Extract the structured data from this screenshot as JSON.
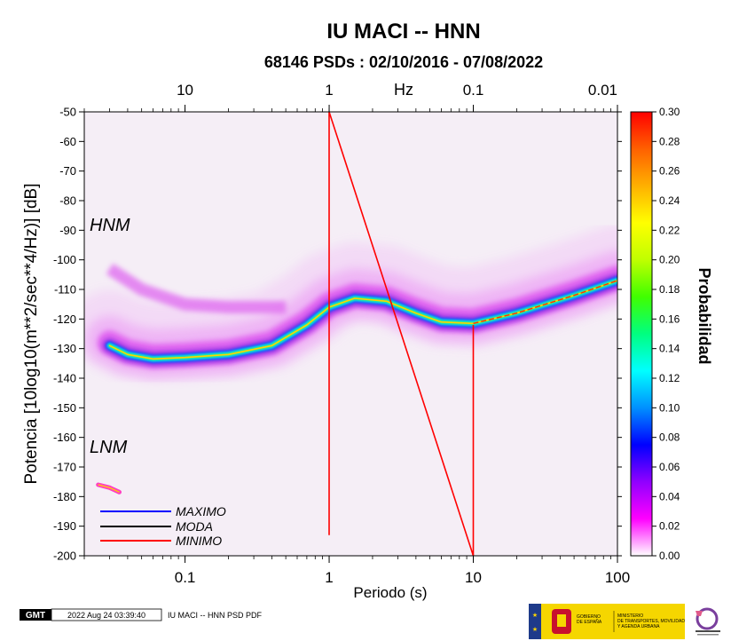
{
  "chart_data": {
    "type": "heatmap",
    "title": "IU MACI -- HNN",
    "subtitle": "68146 PSDs : 02/10/2016 - 07/08/2022",
    "xlabel": "Periodo (s)",
    "ylabel": "Potencia [10log10(m**2/sec**4/Hz)] [dB]",
    "xscale": "log",
    "xlim": [
      0.02,
      100
    ],
    "ylim": [
      -200,
      -50
    ],
    "x_ticks": [
      "0.1",
      "1",
      "10",
      "100"
    ],
    "x_tick_values": [
      0.1,
      1,
      10,
      100
    ],
    "top_axis_label": "Hz",
    "top_ticks": [
      "10",
      "1",
      "0.1",
      "0.01"
    ],
    "top_tick_periods": [
      0.1,
      1,
      10,
      100
    ],
    "y_ticks": [
      "-50",
      "-60",
      "-70",
      "-80",
      "-90",
      "-100",
      "-110",
      "-120",
      "-130",
      "-140",
      "-150",
      "-160",
      "-170",
      "-180",
      "-190",
      "-200"
    ],
    "y_tick_values": [
      -50,
      -60,
      -70,
      -80,
      -90,
      -100,
      -110,
      -120,
      -130,
      -140,
      -150,
      -160,
      -170,
      -180,
      -190,
      -200
    ],
    "model_labels": [
      "HNM",
      "LNM"
    ],
    "legend": [
      {
        "name": "MAXIMO",
        "color": "#0000ff"
      },
      {
        "name": "MODA",
        "color": "#000000"
      },
      {
        "name": "MINIMO",
        "color": "#ff0000"
      }
    ],
    "mode_curve": {
      "x": [
        0.03,
        0.04,
        0.06,
        0.1,
        0.2,
        0.4,
        0.7,
        1.0,
        1.5,
        2.5,
        4.0,
        6.0,
        10,
        20,
        50,
        100
      ],
      "y": [
        -129,
        -132,
        -133.5,
        -133,
        -132,
        -129,
        -122,
        -116,
        -113,
        -114,
        -118,
        -121,
        -121.5,
        -118,
        -112,
        -107
      ]
    },
    "hnm_band": {
      "x": [
        0.03,
        0.05,
        0.1,
        0.2,
        0.5
      ],
      "y": [
        -103,
        -110,
        -115,
        -116,
        -116
      ]
    },
    "lnm_cluster": {
      "x": [
        0.025,
        0.03,
        0.035
      ],
      "y": [
        -176,
        -177,
        -178.5
      ]
    },
    "minimum_line": {
      "x": [
        1,
        1,
        10,
        10
      ],
      "y": [
        -193,
        -50,
        -200,
        -122
      ]
    },
    "colorbar": {
      "label": "Probabilidad",
      "range": [
        0.0,
        0.3
      ],
      "ticks": [
        "0.30",
        "0.28",
        "0.26",
        "0.24",
        "0.22",
        "0.20",
        "0.18",
        "0.16",
        "0.14",
        "0.12",
        "0.10",
        "0.08",
        "0.06",
        "0.04",
        "0.02",
        "0.00"
      ],
      "tick_values": [
        0.3,
        0.28,
        0.26,
        0.24,
        0.22,
        0.2,
        0.18,
        0.16,
        0.14,
        0.12,
        0.1,
        0.08,
        0.06,
        0.04,
        0.02,
        0.0
      ],
      "colors": [
        "#ffffff",
        "#ff00ff",
        "#9000ff",
        "#0000ff",
        "#0090ff",
        "#00ffff",
        "#00ff80",
        "#40ff00",
        "#c0ff00",
        "#ffff00",
        "#ffb000",
        "#ff6000",
        "#ff0000"
      ]
    }
  },
  "footer": {
    "logo": "GMT",
    "timestamp": "2022 Aug 24 03:39:40",
    "filename": "IU MACI -- HNN PSD PDF",
    "gov_line1": "GOBIERNO",
    "gov_line2": "DE ESPAÑA",
    "ministry_line1": "MINISTERIO",
    "ministry_line2": "DE TRANSPORTES, MOVILIDAD",
    "ministry_line3": "Y AGENDA URBANA"
  }
}
